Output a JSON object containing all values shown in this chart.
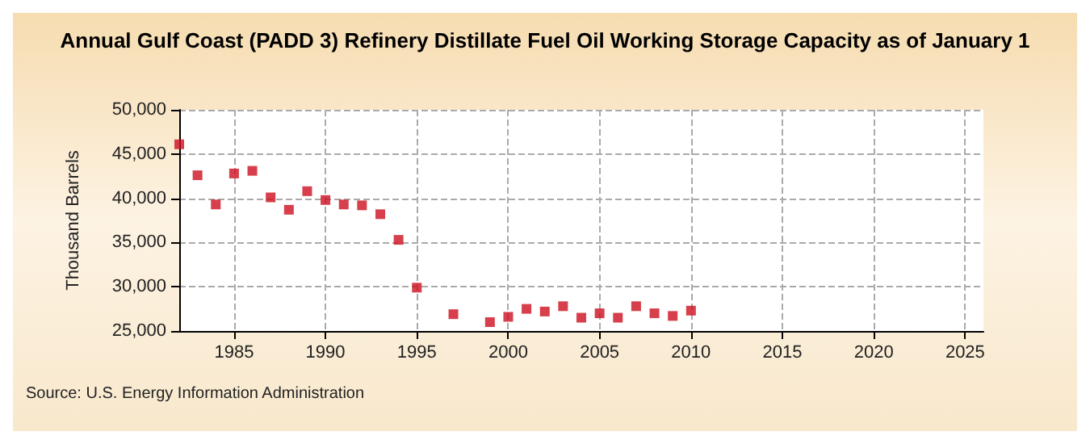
{
  "chart_data": {
    "type": "scatter",
    "title": "Annual Gulf Coast (PADD 3) Refinery Distillate Fuel Oil Working Storage Capacity as of January 1",
    "ylabel": "Thousand Barrels",
    "annotations": [
      "Source: U.S. Energy Information Administration"
    ],
    "x": [
      1982,
      1983,
      1984,
      1985,
      1986,
      1987,
      1988,
      1989,
      1990,
      1991,
      1992,
      1993,
      1994,
      1995,
      1996,
      1997,
      1998,
      1999,
      2000,
      2001,
      2002,
      2003,
      2004,
      2005,
      2006,
      2007,
      2008,
      2009,
      2010
    ],
    "series": [
      {
        "color": "#cc0f1e",
        "values": [
          46100,
          42600,
          39300,
          42800,
          43100,
          40100,
          38700,
          40800,
          39800,
          39300,
          39200,
          38200,
          35300,
          29900,
          null,
          26900,
          null,
          26000,
          26600,
          27500,
          27200,
          27800,
          26500,
          27000,
          26500,
          27800,
          27000,
          26700,
          27300
        ]
      }
    ],
    "xlim": [
      1982,
      2026
    ],
    "xticks": [
      1985,
      1990,
      1995,
      2000,
      2005,
      2010,
      2015,
      2020,
      2025
    ],
    "ylim": [
      25000,
      50000
    ],
    "yticks": [
      {
        "value": 25000,
        "label": "25,000"
      },
      {
        "value": 30000,
        "label": "30,000"
      },
      {
        "value": 35000,
        "label": "35,000"
      },
      {
        "value": 40000,
        "label": "40,000"
      },
      {
        "value": 45000,
        "label": "45,000"
      },
      {
        "value": 50000,
        "label": "50,000"
      }
    ],
    "grid": true,
    "marker": "square"
  }
}
